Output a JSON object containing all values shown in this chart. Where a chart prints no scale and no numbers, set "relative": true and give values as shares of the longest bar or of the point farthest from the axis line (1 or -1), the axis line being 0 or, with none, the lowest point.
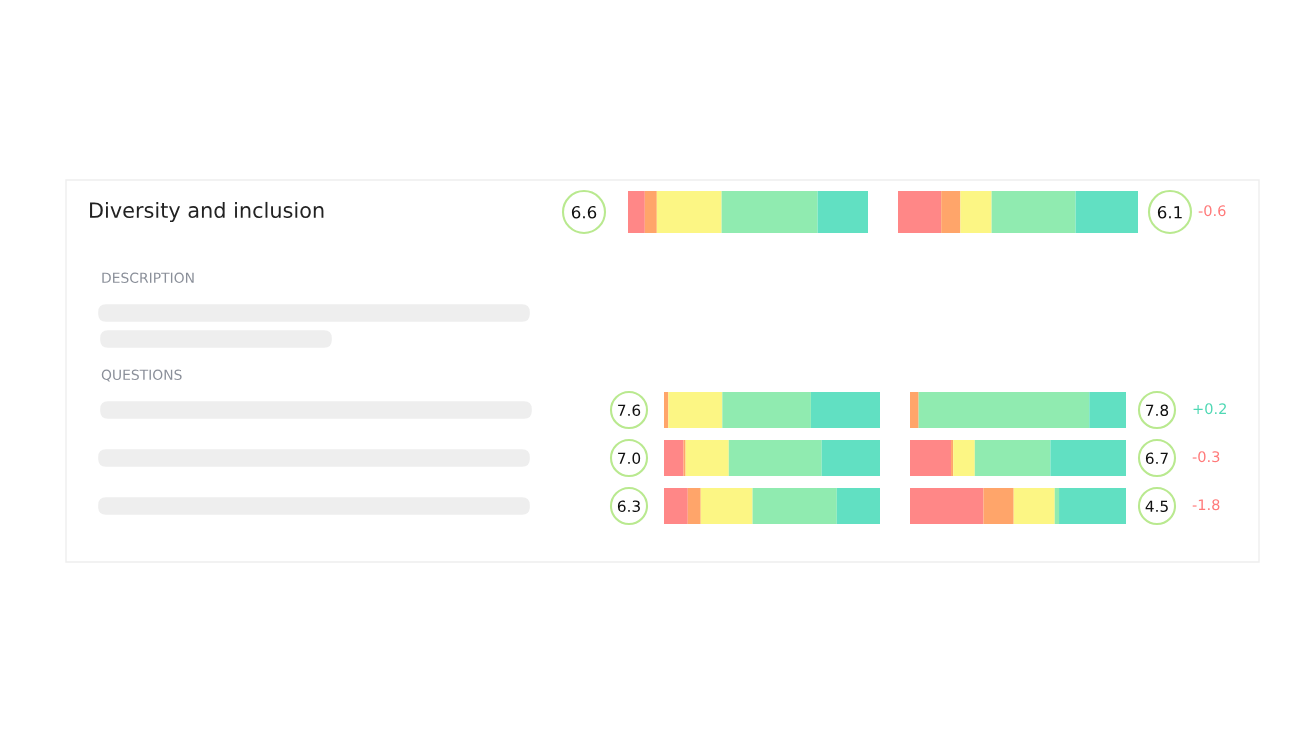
{
  "chart_data": [
    {
      "type": "other",
      "title": "Diversity and inclusion",
      "annotations": [
        "DESCRIPTION",
        "QUESTIONS"
      ]
    },
    {
      "type": "bar",
      "orientation": "horizontal",
      "stacked": true,
      "relative": true,
      "tick_labels": "y",
      "categories": [
        "6.6"
      ],
      "series": [
        {
          "color": "#ff8787",
          "values": [
            0.07
          ]
        },
        {
          "color": "#ffa56a",
          "values": [
            0.05
          ]
        },
        {
          "color": "#fcf684",
          "values": [
            0.27
          ]
        },
        {
          "color": "#90ebb0",
          "values": [
            0.4
          ]
        },
        {
          "color": "#61e0c2",
          "values": [
            0.21
          ]
        }
      ]
    },
    {
      "type": "bar",
      "orientation": "horizontal",
      "stacked": true,
      "relative": true,
      "tick_labels": "y",
      "categories": [
        "6.1"
      ],
      "annotations": [
        "-0.6"
      ],
      "series": [
        {
          "color": "#ff8787",
          "values": [
            0.18
          ]
        },
        {
          "color": "#ffa56a",
          "values": [
            0.08
          ]
        },
        {
          "color": "#fcf684",
          "values": [
            0.13
          ]
        },
        {
          "color": "#90ebb0",
          "values": [
            0.35
          ]
        },
        {
          "color": "#61e0c2",
          "values": [
            0.26
          ]
        }
      ]
    },
    {
      "type": "bar",
      "orientation": "horizontal",
      "stacked": true,
      "relative": true,
      "tick_labels": "y",
      "categories": [
        "7.6",
        "7.0",
        "6.3"
      ],
      "series": [
        {
          "color": "#ff8787",
          "values": [
            0,
            0.09,
            0.11
          ]
        },
        {
          "color": "#ffa56a",
          "values": [
            0.02,
            0.01,
            0.06
          ]
        },
        {
          "color": "#fcf684",
          "values": [
            0.25,
            0.2,
            0.24
          ]
        },
        {
          "color": "#90ebb0",
          "values": [
            0.41,
            0.43,
            0.39
          ]
        },
        {
          "color": "#61e0c2",
          "values": [
            0.32,
            0.27,
            0.2
          ]
        }
      ]
    },
    {
      "type": "bar",
      "orientation": "horizontal",
      "stacked": true,
      "relative": true,
      "tick_labels": "y",
      "categories": [
        "7.8",
        "6.7",
        "4.5"
      ],
      "annotations": [
        "+0.2",
        "-0.3",
        "-1.8"
      ],
      "series": [
        {
          "color": "#ff8787",
          "values": [
            0,
            0.19,
            0.34
          ]
        },
        {
          "color": "#ffa56a",
          "values": [
            0.04,
            0.01,
            0.14
          ]
        },
        {
          "color": "#fcf684",
          "values": [
            0,
            0.1,
            0.19
          ]
        },
        {
          "color": "#90ebb0",
          "values": [
            0.79,
            0.35,
            0.02
          ]
        },
        {
          "color": "#61e0c2",
          "values": [
            0.17,
            0.35,
            0.31
          ]
        }
      ]
    }
  ]
}
